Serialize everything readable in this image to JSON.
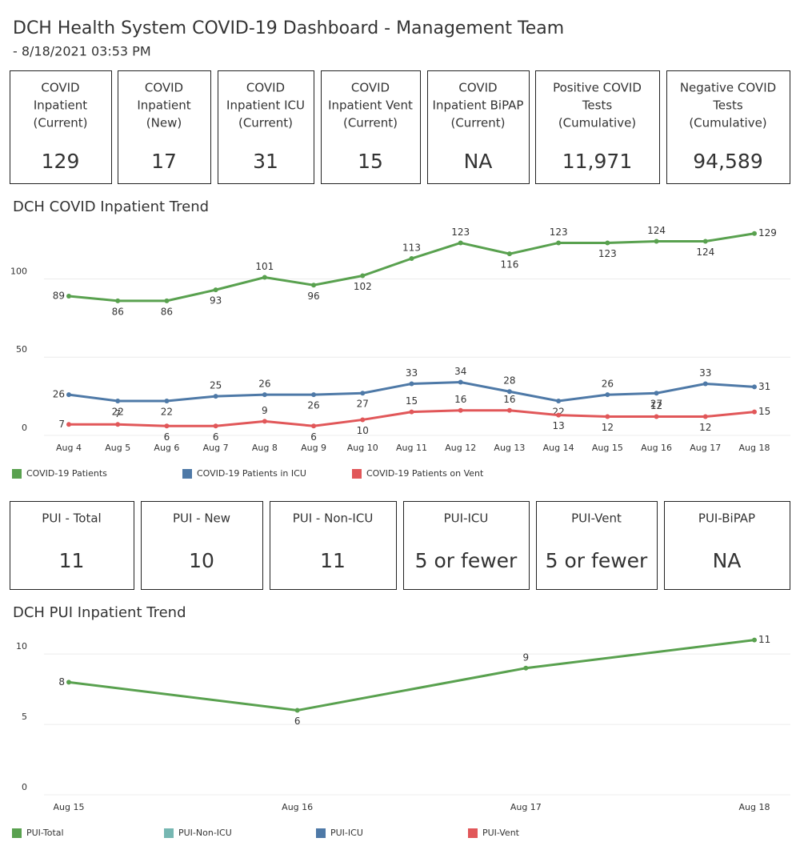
{
  "header": {
    "title": "DCH Health System COVID-19 Dashboard - Management Team",
    "subtitle": "- 8/18/2021 03:53 PM"
  },
  "kpis": [
    {
      "lines": [
        "COVID",
        "Inpatient",
        "(Current)"
      ],
      "value": "129"
    },
    {
      "lines": [
        "COVID",
        "Inpatient",
        "(New)"
      ],
      "value": "17"
    },
    {
      "lines": [
        "COVID",
        "Inpatient ICU",
        "(Current)"
      ],
      "value": "31"
    },
    {
      "lines": [
        "COVID",
        "Inpatient Vent",
        "(Current)"
      ],
      "value": "15"
    },
    {
      "lines": [
        "COVID",
        "Inpatient BiPAP",
        "(Current)"
      ],
      "value": "NA"
    },
    {
      "lines": [
        "Positive COVID",
        "Tests",
        "(Cumulative)"
      ],
      "value": "11,971"
    },
    {
      "lines": [
        "Negative COVID",
        "Tests",
        "(Cumulative)"
      ],
      "value": "94,589"
    }
  ],
  "pui_kpis": [
    {
      "label": "PUI - Total",
      "value": "11"
    },
    {
      "label": "PUI - New",
      "value": "10"
    },
    {
      "label": "PUI - Non-ICU",
      "value": "11"
    },
    {
      "label": "PUI-ICU",
      "value": "5 or fewer"
    },
    {
      "label": "PUI-Vent",
      "value": "5 or fewer"
    },
    {
      "label": "PUI-BiPAP",
      "value": "NA"
    }
  ],
  "chart_data": [
    {
      "type": "line",
      "title": "DCH COVID Inpatient Trend",
      "categories": [
        "Aug 4",
        "Aug 5",
        "Aug 6",
        "Aug 7",
        "Aug 8",
        "Aug 9",
        "Aug 10",
        "Aug 11",
        "Aug 12",
        "Aug 13",
        "Aug 14",
        "Aug 15",
        "Aug 16",
        "Aug 17",
        "Aug 18"
      ],
      "series": [
        {
          "name": "COVID-19 Patients",
          "color": "#59a14f",
          "values": [
            89,
            86,
            86,
            93,
            101,
            96,
            102,
            113,
            123,
            116,
            123,
            123,
            124,
            124,
            129
          ]
        },
        {
          "name": "COVID-19 Patients in ICU",
          "color": "#4e79a7",
          "values": [
            26,
            22,
            22,
            25,
            26,
            26,
            27,
            33,
            34,
            28,
            22,
            26,
            27,
            33,
            31
          ]
        },
        {
          "name": "COVID-19 Patients on Vent",
          "color": "#e15759",
          "values": [
            7,
            7,
            6,
            6,
            9,
            6,
            10,
            15,
            16,
            16,
            13,
            12,
            12,
            12,
            15
          ]
        }
      ],
      "ylim": [
        0,
        135
      ],
      "yticks": [
        0,
        50,
        100
      ],
      "grid": true
    },
    {
      "type": "line",
      "title": "DCH PUI Inpatient Trend",
      "categories": [
        "Aug 15",
        "Aug 16",
        "Aug 17",
        "Aug 18"
      ],
      "series": [
        {
          "name": "PUI-Total",
          "color": "#59a14f",
          "values": [
            8,
            6,
            9,
            11
          ]
        },
        {
          "name": "PUI-Non-ICU",
          "color": "#76b7b2",
          "values": [
            null,
            null,
            null,
            null
          ]
        },
        {
          "name": "PUI-ICU",
          "color": "#4e79a7",
          "values": [
            null,
            null,
            null,
            null
          ]
        },
        {
          "name": "PUI-Vent",
          "color": "#e15759",
          "values": [
            null,
            null,
            null,
            null
          ]
        }
      ],
      "ylim": [
        0,
        12
      ],
      "yticks": [
        0,
        5,
        10
      ],
      "grid": true
    }
  ]
}
